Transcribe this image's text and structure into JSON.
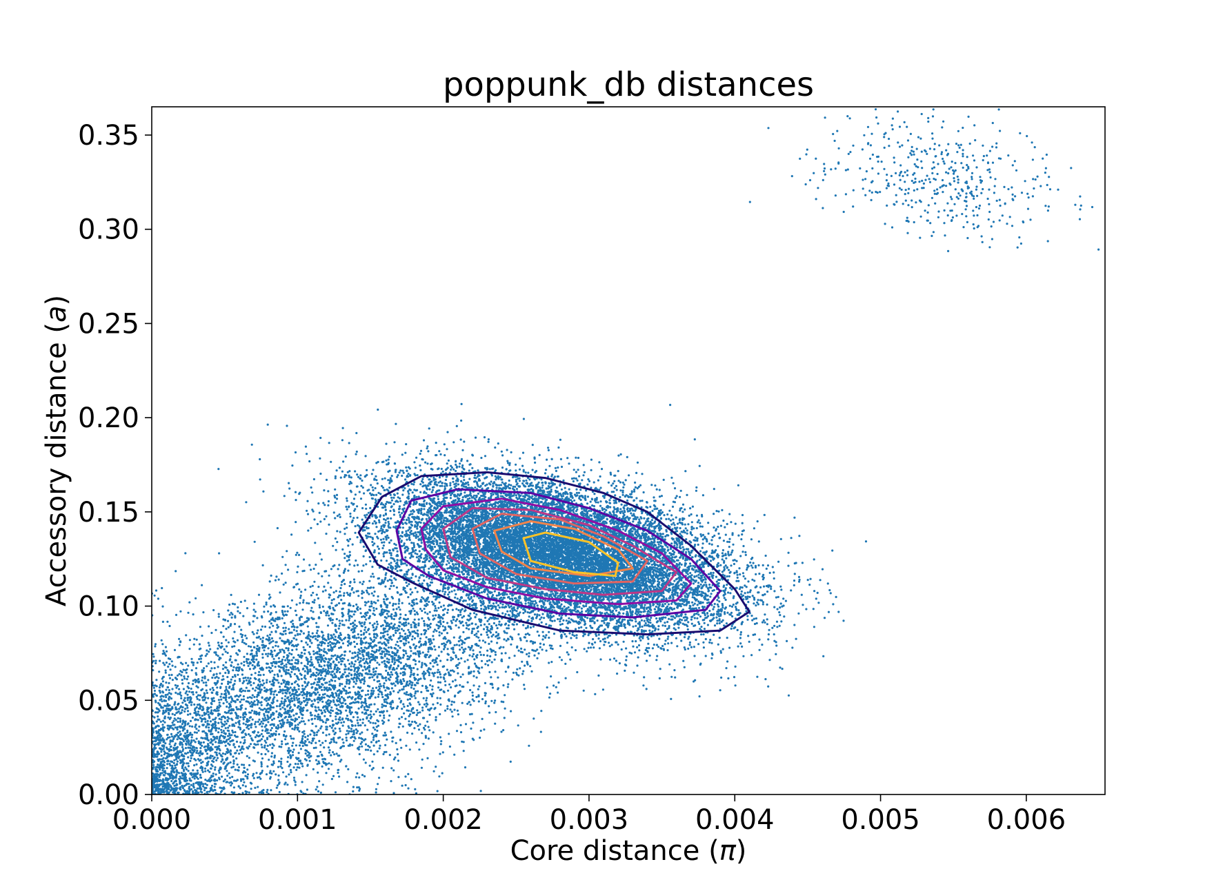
{
  "chart_data": {
    "type": "scatter",
    "title": "poppunk_db distances",
    "xlabel_main": "Core distance (",
    "xlabel_sym": "π",
    "xlabel_end": ")",
    "ylabel_main": "Accessory distance (",
    "ylabel_sym": "a",
    "ylabel_end": ")",
    "xlim": [
      0,
      0.00654
    ],
    "ylim": [
      0,
      0.365
    ],
    "xticks": [
      0.0,
      0.001,
      0.002,
      0.003,
      0.004,
      0.005,
      0.006
    ],
    "xtick_labels": [
      "0.000",
      "0.001",
      "0.002",
      "0.003",
      "0.004",
      "0.005",
      "0.006"
    ],
    "yticks": [
      0.0,
      0.05,
      0.1,
      0.15,
      0.2,
      0.25,
      0.3,
      0.35
    ],
    "ytick_labels": [
      "0.00",
      "0.05",
      "0.10",
      "0.15",
      "0.20",
      "0.25",
      "0.30",
      "0.35"
    ],
    "grid": false,
    "point_color": "#1f77b4",
    "clusters": [
      {
        "name": "main",
        "n": 14000,
        "cx": 0.0028,
        "cy": 0.128,
        "sx": 0.00058,
        "sy": 0.02,
        "rho": -0.45
      },
      {
        "name": "lower-left",
        "n": 5500,
        "cx": 0.0012,
        "cy": 0.062,
        "sx": 0.00075,
        "sy": 0.033,
        "rho": 0.55
      },
      {
        "name": "near-zero",
        "n": 700,
        "cx": 0.0002,
        "cy": 0.018,
        "sx": 0.00022,
        "sy": 0.018,
        "rho": 0.3
      },
      {
        "name": "upper-right",
        "n": 450,
        "cx": 0.0054,
        "cy": 0.328,
        "sx": 0.00045,
        "sy": 0.016,
        "rho": -0.3
      }
    ],
    "contours": [
      {
        "color": "#1a0c6f",
        "points": [
          [
            0.00142,
            0.139
          ],
          [
            0.00158,
            0.158
          ],
          [
            0.00185,
            0.169
          ],
          [
            0.0023,
            0.171
          ],
          [
            0.0027,
            0.168
          ],
          [
            0.0031,
            0.16
          ],
          [
            0.0034,
            0.15
          ],
          [
            0.0037,
            0.132
          ],
          [
            0.004,
            0.109
          ],
          [
            0.0041,
            0.097
          ],
          [
            0.0039,
            0.087
          ],
          [
            0.0034,
            0.085
          ],
          [
            0.0028,
            0.087
          ],
          [
            0.0022,
            0.098
          ],
          [
            0.0018,
            0.112
          ],
          [
            0.00155,
            0.122
          ],
          [
            0.00142,
            0.139
          ]
        ]
      },
      {
        "color": "#5b02a3",
        "points": [
          [
            0.00168,
            0.14
          ],
          [
            0.00178,
            0.156
          ],
          [
            0.0021,
            0.162
          ],
          [
            0.0026,
            0.16
          ],
          [
            0.003,
            0.152
          ],
          [
            0.0034,
            0.14
          ],
          [
            0.0037,
            0.125
          ],
          [
            0.0039,
            0.108
          ],
          [
            0.0038,
            0.098
          ],
          [
            0.0033,
            0.094
          ],
          [
            0.0028,
            0.096
          ],
          [
            0.0023,
            0.104
          ],
          [
            0.0019,
            0.116
          ],
          [
            0.00172,
            0.125
          ],
          [
            0.00168,
            0.14
          ]
        ]
      },
      {
        "color": "#8f0da4",
        "points": [
          [
            0.00185,
            0.141
          ],
          [
            0.002,
            0.153
          ],
          [
            0.0024,
            0.157
          ],
          [
            0.0028,
            0.151
          ],
          [
            0.0032,
            0.14
          ],
          [
            0.0035,
            0.128
          ],
          [
            0.0037,
            0.112
          ],
          [
            0.0036,
            0.103
          ],
          [
            0.0032,
            0.101
          ],
          [
            0.0027,
            0.104
          ],
          [
            0.0023,
            0.11
          ],
          [
            0.002,
            0.119
          ],
          [
            0.00188,
            0.13
          ],
          [
            0.00185,
            0.141
          ]
        ]
      },
      {
        "color": "#bd3786",
        "points": [
          [
            0.002,
            0.141
          ],
          [
            0.0022,
            0.152
          ],
          [
            0.0026,
            0.151
          ],
          [
            0.003,
            0.143
          ],
          [
            0.0033,
            0.132
          ],
          [
            0.0036,
            0.118
          ],
          [
            0.0035,
            0.108
          ],
          [
            0.0031,
            0.106
          ],
          [
            0.0027,
            0.109
          ],
          [
            0.0023,
            0.115
          ],
          [
            0.00205,
            0.126
          ],
          [
            0.002,
            0.141
          ]
        ]
      },
      {
        "color": "#e16462",
        "points": [
          [
            0.0022,
            0.141
          ],
          [
            0.0024,
            0.149
          ],
          [
            0.0028,
            0.146
          ],
          [
            0.0031,
            0.137
          ],
          [
            0.0034,
            0.124
          ],
          [
            0.0033,
            0.113
          ],
          [
            0.0029,
            0.112
          ],
          [
            0.0025,
            0.117
          ],
          [
            0.00225,
            0.128
          ],
          [
            0.0022,
            0.141
          ]
        ]
      },
      {
        "color": "#f2844b",
        "points": [
          [
            0.00235,
            0.14
          ],
          [
            0.0026,
            0.145
          ],
          [
            0.0029,
            0.141
          ],
          [
            0.0032,
            0.13
          ],
          [
            0.0033,
            0.12
          ],
          [
            0.003,
            0.116
          ],
          [
            0.0026,
            0.12
          ],
          [
            0.0024,
            0.129
          ],
          [
            0.00235,
            0.14
          ]
        ]
      },
      {
        "color": "#fdc328",
        "points": [
          [
            0.00255,
            0.136
          ],
          [
            0.0027,
            0.139
          ],
          [
            0.003,
            0.134
          ],
          [
            0.0032,
            0.123
          ],
          [
            0.00318,
            0.116
          ],
          [
            0.0029,
            0.118
          ],
          [
            0.0026,
            0.124
          ],
          [
            0.00255,
            0.136
          ]
        ]
      }
    ]
  }
}
